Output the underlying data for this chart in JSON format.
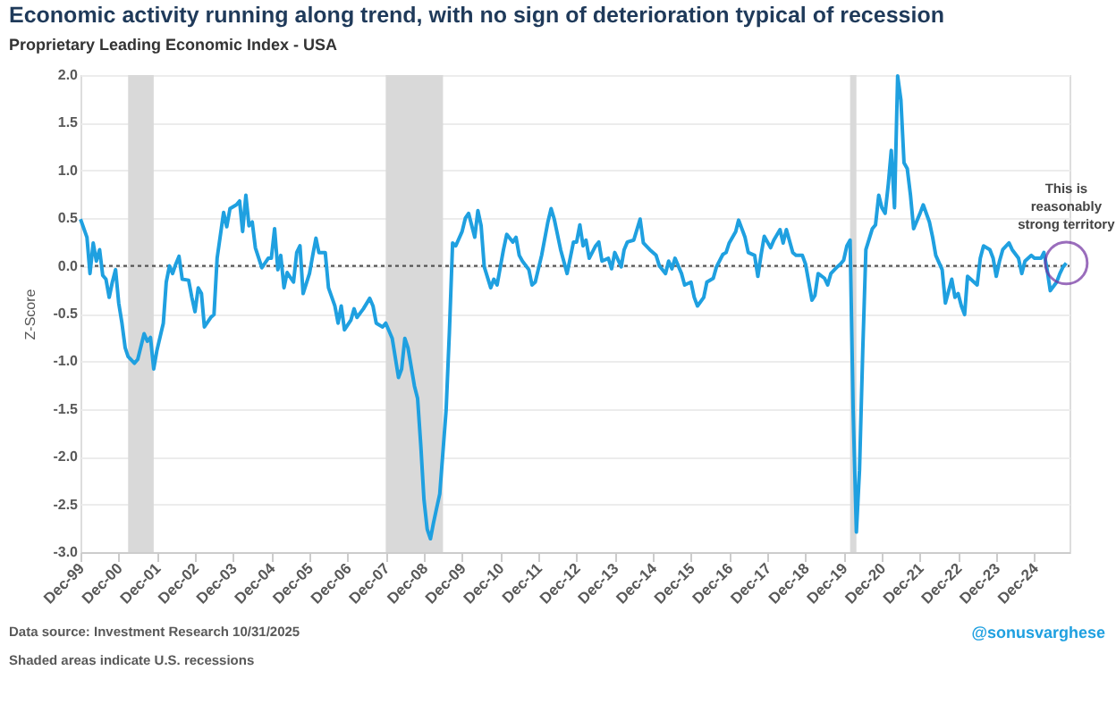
{
  "chart_data": {
    "type": "line",
    "title": "Economic activity running along trend, with no sign of deterioration typical of recession",
    "subtitle": "Proprietary Leading Economic Index - USA",
    "ylabel": "Z-Score",
    "x": [
      "1999-12",
      "2000-02",
      "2000-03",
      "2000-04",
      "2000-05",
      "2000-06",
      "2000-07",
      "2000-08",
      "2000-09",
      "2000-10",
      "2000-11",
      "2000-12",
      "2001-01",
      "2001-02",
      "2001-03",
      "2001-05",
      "2001-06",
      "2001-08",
      "2001-09",
      "2001-10",
      "2001-11",
      "2001-12",
      "2002-02",
      "2002-03",
      "2002-04",
      "2002-05",
      "2002-06",
      "2002-07",
      "2002-08",
      "2002-10",
      "2002-11",
      "2002-12",
      "2003-01",
      "2003-02",
      "2003-03",
      "2003-05",
      "2003-06",
      "2003-07",
      "2003-09",
      "2003-10",
      "2003-11",
      "2004-01",
      "2004-02",
      "2004-03",
      "2004-04",
      "2004-05",
      "2004-06",
      "2004-07",
      "2004-09",
      "2004-11",
      "2004-12",
      "2005-01",
      "2005-02",
      "2005-03",
      "2005-04",
      "2005-05",
      "2005-07",
      "2005-08",
      "2005-09",
      "2005-10",
      "2005-12",
      "2006-01",
      "2006-02",
      "2006-03",
      "2006-05",
      "2006-06",
      "2006-08",
      "2006-09",
      "2006-10",
      "2006-11",
      "2007-01",
      "2007-02",
      "2007-03",
      "2007-05",
      "2007-07",
      "2007-08",
      "2007-09",
      "2007-11",
      "2007-12",
      "2008-02",
      "2008-04",
      "2008-05",
      "2008-06",
      "2008-07",
      "2008-09",
      "2008-10",
      "2008-11",
      "2008-12",
      "2009-01",
      "2009-02",
      "2009-03",
      "2009-04",
      "2009-05",
      "2009-07",
      "2009-08",
      "2009-09",
      "2009-10",
      "2009-12",
      "2010-01",
      "2010-02",
      "2010-04",
      "2010-05",
      "2010-06",
      "2010-07",
      "2010-09",
      "2010-10",
      "2010-11",
      "2011-01",
      "2011-02",
      "2011-04",
      "2011-05",
      "2011-06",
      "2011-07",
      "2011-09",
      "2011-10",
      "2011-11",
      "2012-01",
      "2012-03",
      "2012-04",
      "2012-05",
      "2012-07",
      "2012-09",
      "2012-11",
      "2012-12",
      "2013-01",
      "2013-02",
      "2013-03",
      "2013-04",
      "2013-06",
      "2013-07",
      "2013-08",
      "2013-10",
      "2013-11",
      "2013-12",
      "2014-02",
      "2014-03",
      "2014-04",
      "2014-06",
      "2014-08",
      "2014-09",
      "2014-11",
      "2015-01",
      "2015-02",
      "2015-04",
      "2015-05",
      "2015-06",
      "2015-07",
      "2015-09",
      "2015-10",
      "2015-12",
      "2016-01",
      "2016-02",
      "2016-04",
      "2016-05",
      "2016-07",
      "2016-08",
      "2016-10",
      "2016-11",
      "2016-12",
      "2017-02",
      "2017-03",
      "2017-05",
      "2017-06",
      "2017-08",
      "2017-09",
      "2017-10",
      "2017-11",
      "2018-01",
      "2018-02",
      "2018-04",
      "2018-05",
      "2018-06",
      "2018-08",
      "2018-09",
      "2018-11",
      "2018-12",
      "2019-02",
      "2019-03",
      "2019-04",
      "2019-06",
      "2019-07",
      "2019-08",
      "2019-10",
      "2019-11",
      "2019-12",
      "2020-01",
      "2020-02",
      "2020-03",
      "2020-04",
      "2020-05",
      "2020-06",
      "2020-07",
      "2020-09",
      "2020-10",
      "2020-11",
      "2020-12",
      "2021-01",
      "2021-02",
      "2021-03",
      "2021-04",
      "2021-05",
      "2021-06",
      "2021-07",
      "2021-08",
      "2021-09",
      "2021-10",
      "2021-12",
      "2022-01",
      "2022-03",
      "2022-04",
      "2022-05",
      "2022-07",
      "2022-08",
      "2022-10",
      "2022-11",
      "2022-12",
      "2023-01",
      "2023-02",
      "2023-03",
      "2023-04",
      "2023-06",
      "2023-07",
      "2023-08",
      "2023-10",
      "2023-11",
      "2023-12",
      "2024-01",
      "2024-02",
      "2024-04",
      "2024-05",
      "2024-07",
      "2024-08",
      "2024-09",
      "2024-11",
      "2024-12",
      "2025-02",
      "2025-03",
      "2025-04",
      "2025-05",
      "2025-07",
      "2025-08",
      "2025-09",
      "2025-10"
    ],
    "series": [
      {
        "color": "#1fa0e0",
        "values": [
          0.49,
          0.3,
          -0.08,
          0.24,
          0.05,
          0.17,
          -0.1,
          -0.14,
          -0.33,
          -0.17,
          -0.04,
          -0.39,
          -0.6,
          -0.86,
          -0.95,
          -1.02,
          -0.98,
          -0.71,
          -0.79,
          -0.75,
          -1.08,
          -0.89,
          -0.6,
          -0.17,
          0,
          -0.08,
          0.02,
          0.1,
          -0.14,
          -0.15,
          -0.33,
          -0.48,
          -0.23,
          -0.29,
          -0.64,
          -0.54,
          -0.51,
          0.08,
          0.56,
          0.41,
          0.6,
          0.64,
          0.68,
          0.36,
          0.74,
          0.42,
          0.46,
          0.19,
          -0.02,
          0.08,
          0.08,
          0.39,
          -0.04,
          0.11,
          -0.23,
          -0.07,
          -0.17,
          0.14,
          0.21,
          -0.29,
          -0.08,
          0.11,
          0.29,
          0.14,
          0.14,
          -0.23,
          -0.42,
          -0.6,
          -0.42,
          -0.67,
          -0.57,
          -0.45,
          -0.54,
          -0.45,
          -0.34,
          -0.42,
          -0.6,
          -0.64,
          -0.6,
          -0.76,
          -1.17,
          -1.08,
          -0.76,
          -0.86,
          -1.26,
          -1.39,
          -1.89,
          -2.45,
          -2.76,
          -2.86,
          -2.7,
          -2.54,
          -2.39,
          -1.51,
          -0.7,
          0.24,
          0.21,
          0.36,
          0.5,
          0.55,
          0.3,
          0.58,
          0.42,
          -0.01,
          -0.23,
          -0.14,
          -0.2,
          0.17,
          0.33,
          0.25,
          0.3,
          0.11,
          0.05,
          -0.04,
          -0.2,
          -0.17,
          0.11,
          0.46,
          0.6,
          0.49,
          0.17,
          -0.08,
          0.25,
          0.25,
          0.43,
          0.21,
          0.27,
          0.08,
          0.21,
          0.25,
          0.05,
          0.08,
          -0.03,
          0.14,
          -0.01,
          0.17,
          0.25,
          0.27,
          0.49,
          0.24,
          0.17,
          0.11,
          0,
          -0.08,
          0.05,
          -0.03,
          0.08,
          -0.08,
          -0.2,
          -0.17,
          -0.33,
          -0.42,
          -0.33,
          -0.17,
          -0.13,
          -0.01,
          0.12,
          0.14,
          0.24,
          0.36,
          0.48,
          0.3,
          0.14,
          0.11,
          -0.11,
          0.11,
          0.31,
          0.19,
          0.27,
          0.38,
          0.24,
          0.38,
          0.14,
          0.11,
          0.11,
          0.02,
          -0.36,
          -0.31,
          -0.08,
          -0.13,
          -0.2,
          -0.08,
          -0.01,
          0.02,
          0.06,
          0.21,
          0.27,
          -1.51,
          -2.79,
          -2.14,
          -0.89,
          0.17,
          0.39,
          0.43,
          0.74,
          0.61,
          0.55,
          0.86,
          1.21,
          0.61,
          1.99,
          1.74,
          1.08,
          1.02,
          0.74,
          0.39,
          0.55,
          0.64,
          0.46,
          0.3,
          0.11,
          -0.04,
          -0.39,
          -0.14,
          -0.33,
          -0.29,
          -0.42,
          -0.51,
          -0.11,
          -0.14,
          -0.2,
          0.08,
          0.21,
          0.17,
          0.08,
          -0.11,
          0.05,
          0.17,
          0.24,
          0.17,
          0.08,
          -0.08,
          0.05,
          0.11,
          0.08,
          0.08,
          0.14,
          -0.04,
          -0.26,
          -0.17,
          -0.08,
          -0.01,
          0.03
        ]
      }
    ],
    "xlim": [
      "1999-12",
      "2025-11"
    ],
    "xticks": [
      {
        "value": "1999-12",
        "label": "Dec-99"
      },
      {
        "value": "2000-12",
        "label": "Dec-00"
      },
      {
        "value": "2001-12",
        "label": "Dec-01"
      },
      {
        "value": "2002-12",
        "label": "Dec-02"
      },
      {
        "value": "2003-12",
        "label": "Dec-03"
      },
      {
        "value": "2004-12",
        "label": "Dec-04"
      },
      {
        "value": "2005-12",
        "label": "Dec-05"
      },
      {
        "value": "2006-12",
        "label": "Dec-06"
      },
      {
        "value": "2007-12",
        "label": "Dec-07"
      },
      {
        "value": "2008-12",
        "label": "Dec-08"
      },
      {
        "value": "2009-12",
        "label": "Dec-09"
      },
      {
        "value": "2010-12",
        "label": "Dec-10"
      },
      {
        "value": "2011-12",
        "label": "Dec-11"
      },
      {
        "value": "2012-12",
        "label": "Dec-12"
      },
      {
        "value": "2013-12",
        "label": "Dec-13"
      },
      {
        "value": "2014-12",
        "label": "Dec-14"
      },
      {
        "value": "2015-12",
        "label": "Dec-15"
      },
      {
        "value": "2016-12",
        "label": "Dec-16"
      },
      {
        "value": "2017-12",
        "label": "Dec-17"
      },
      {
        "value": "2018-12",
        "label": "Dec-18"
      },
      {
        "value": "2019-12",
        "label": "Dec-19"
      },
      {
        "value": "2020-12",
        "label": "Dec-20"
      },
      {
        "value": "2021-12",
        "label": "Dec-21"
      },
      {
        "value": "2022-12",
        "label": "Dec-22"
      },
      {
        "value": "2023-12",
        "label": "Dec-23"
      },
      {
        "value": "2024-12",
        "label": "Dec-24"
      }
    ],
    "ylim": [
      -3,
      2
    ],
    "yticks": [
      {
        "value": 2,
        "label": "2.0"
      },
      {
        "value": 1.5,
        "label": "1.5"
      },
      {
        "value": 1,
        "label": "1.0"
      },
      {
        "value": 0.5,
        "label": "0.5"
      },
      {
        "value": 0,
        "label": "0.0"
      },
      {
        "value": -0.5,
        "label": "-0.5"
      },
      {
        "value": -1,
        "label": "-1.0"
      },
      {
        "value": -1.5,
        "label": "-1.5"
      },
      {
        "value": -2,
        "label": "-2.0"
      },
      {
        "value": -2.5,
        "label": "-2.5"
      },
      {
        "value": -3,
        "label": "-3.0"
      }
    ],
    "grid": "y",
    "ref_lines": [
      {
        "axis": "y",
        "value": 0,
        "color": "#555555",
        "line_style": "dotted"
      }
    ],
    "bands": [
      {
        "axis": "x",
        "from": "2001-03",
        "to": "2001-11",
        "color": "#d9d9d9"
      },
      {
        "axis": "x",
        "from": "2007-12",
        "to": "2009-06",
        "color": "#d9d9d9"
      },
      {
        "axis": "x",
        "from": "2020-02",
        "to": "2020-04",
        "color": "#d9d9d9"
      }
    ],
    "annotations": [
      {
        "text": "This is reasonably strong territory",
        "x": "2025-10",
        "y": 0.03
      },
      "Data source: Investment Research  10/31/2025",
      "Shaded areas indicate U.S. recessions",
      "@sonusvarghese"
    ]
  }
}
